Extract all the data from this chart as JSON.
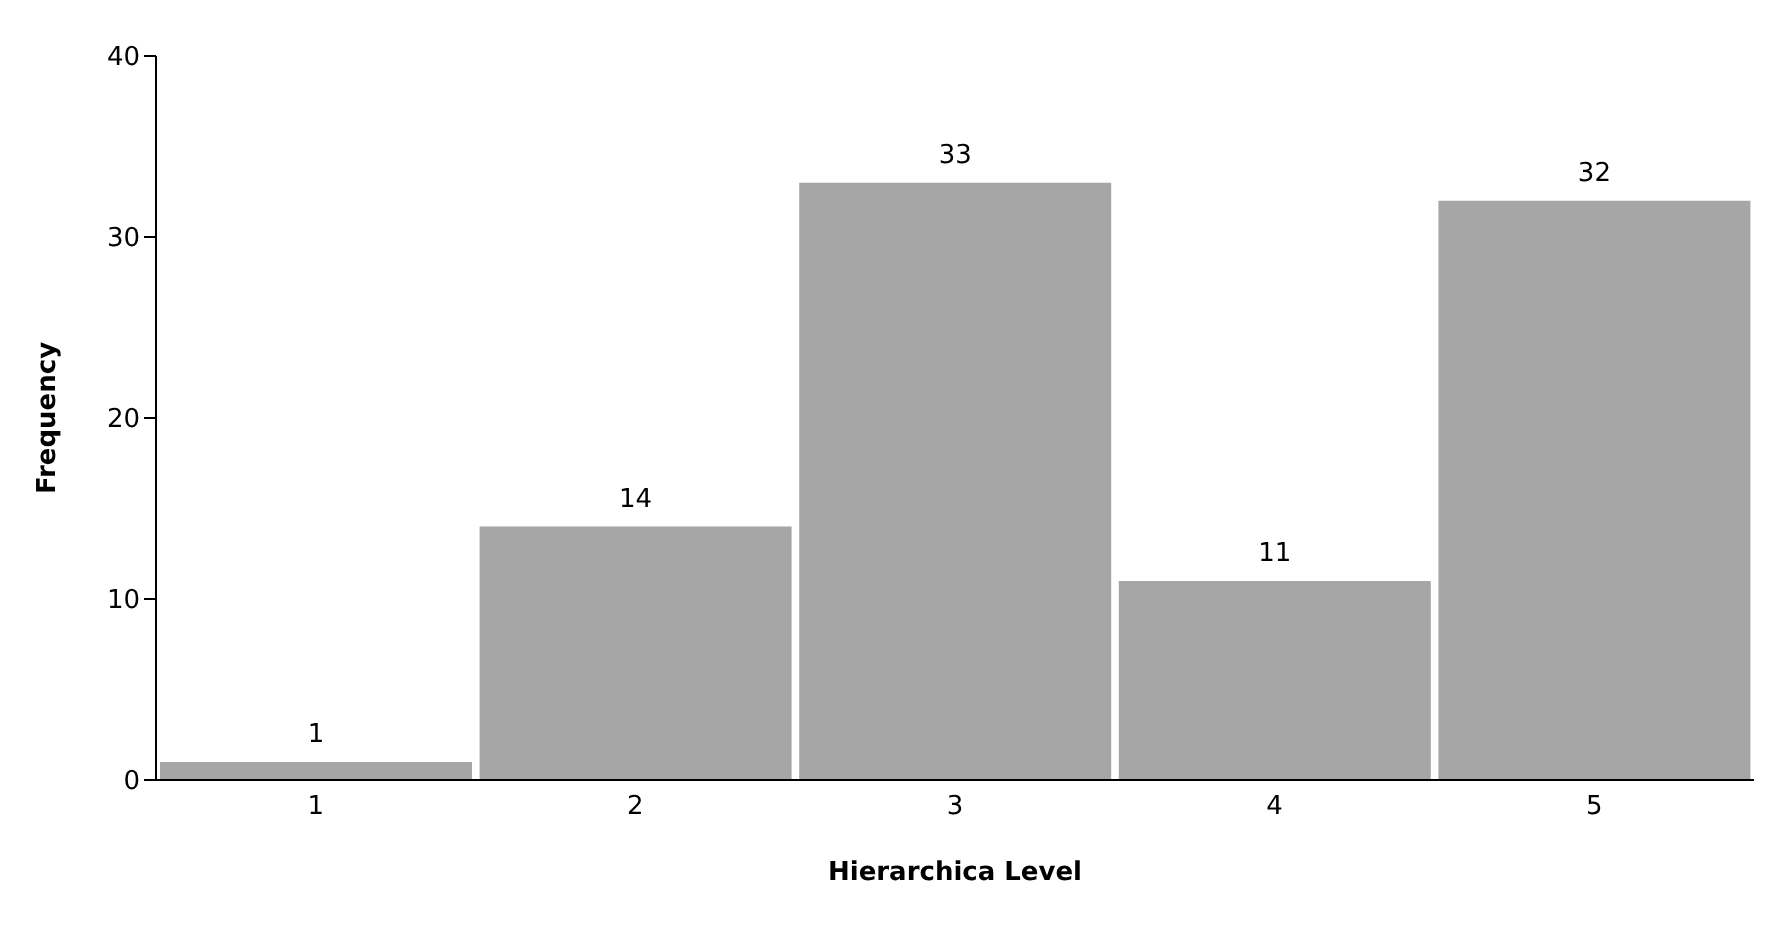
{
  "chart_data": {
    "type": "bar",
    "categories": [
      "1",
      "2",
      "3",
      "4",
      "5"
    ],
    "values": [
      1,
      14,
      33,
      11,
      32
    ],
    "color": "#a6a6a6",
    "xlabel": "Hierarchica Level",
    "ylabel": "Frequency",
    "ylim": [
      0,
      40
    ],
    "yticks": [
      0,
      10,
      20,
      30,
      40
    ],
    "data_labels": true
  }
}
